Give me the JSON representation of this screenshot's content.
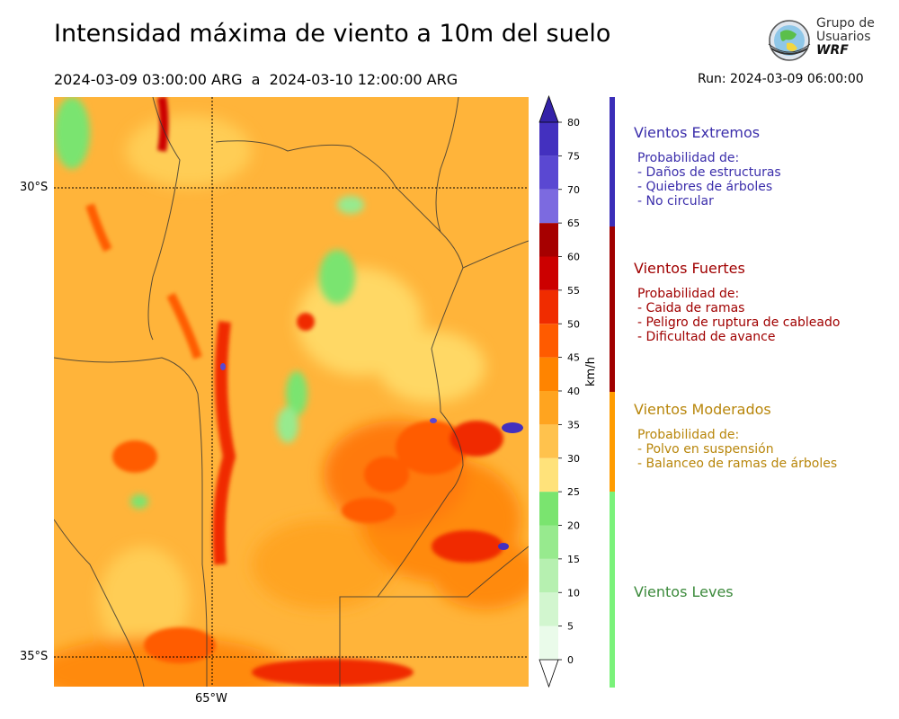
{
  "header": {
    "title": "Intensidad máxima de viento a 10m del suelo",
    "period": "2024-03-09 03:00:00 ARG  a  2024-03-10 12:00:00 ARG",
    "run": "Run: 2024-03-09 06:00:00"
  },
  "logo": {
    "line1": "Grupo de",
    "line2": "Usuarios",
    "line3": "WRF"
  },
  "map": {
    "lat_labels": [
      "30°S",
      "35°S"
    ],
    "lon_labels": [
      "65°W"
    ]
  },
  "colorbar": {
    "unit": "km/h",
    "ticks": [
      "0",
      "5",
      "10",
      "15",
      "20",
      "25",
      "30",
      "35",
      "40",
      "45",
      "50",
      "55",
      "60",
      "65",
      "70",
      "75",
      "80"
    ],
    "colors": [
      "#eafbea",
      "#d2f6cf",
      "#b6f0b0",
      "#97ea8e",
      "#7ae46f",
      "#ffe27a",
      "#ffc24d",
      "#ffa41f",
      "#ff8400",
      "#ff5b00",
      "#f02c00",
      "#cc0000",
      "#a60000",
      "#7c6ae0",
      "#5a48d2",
      "#4330bf",
      "#3422a8"
    ]
  },
  "legend": {
    "categories": [
      {
        "title": "Vientos Extremos",
        "color": "#3b2eab",
        "lines": [
          "Probabilidad de:",
          "- Daños de estructuras",
          "- Quiebres de árboles",
          "- No circular"
        ]
      },
      {
        "title": "Vientos Fuertes",
        "color": "#a00000",
        "lines": [
          "Probabilidad de:",
          "- Caida de ramas",
          "- Peligro de ruptura de cableado",
          "- Dificultad de avance"
        ]
      },
      {
        "title": "Vientos Moderados",
        "color": "#b8860b",
        "lines": [
          "Probabilidad de:",
          "- Polvo en suspensión",
          "- Balanceo de ramas de árboles"
        ]
      },
      {
        "title": "Vientos Leves",
        "color": "#3c8a3c",
        "lines": []
      }
    ],
    "bar_colors": [
      "#3b2eb8",
      "#a00000",
      "#ff9c00",
      "#7af27a"
    ]
  }
}
